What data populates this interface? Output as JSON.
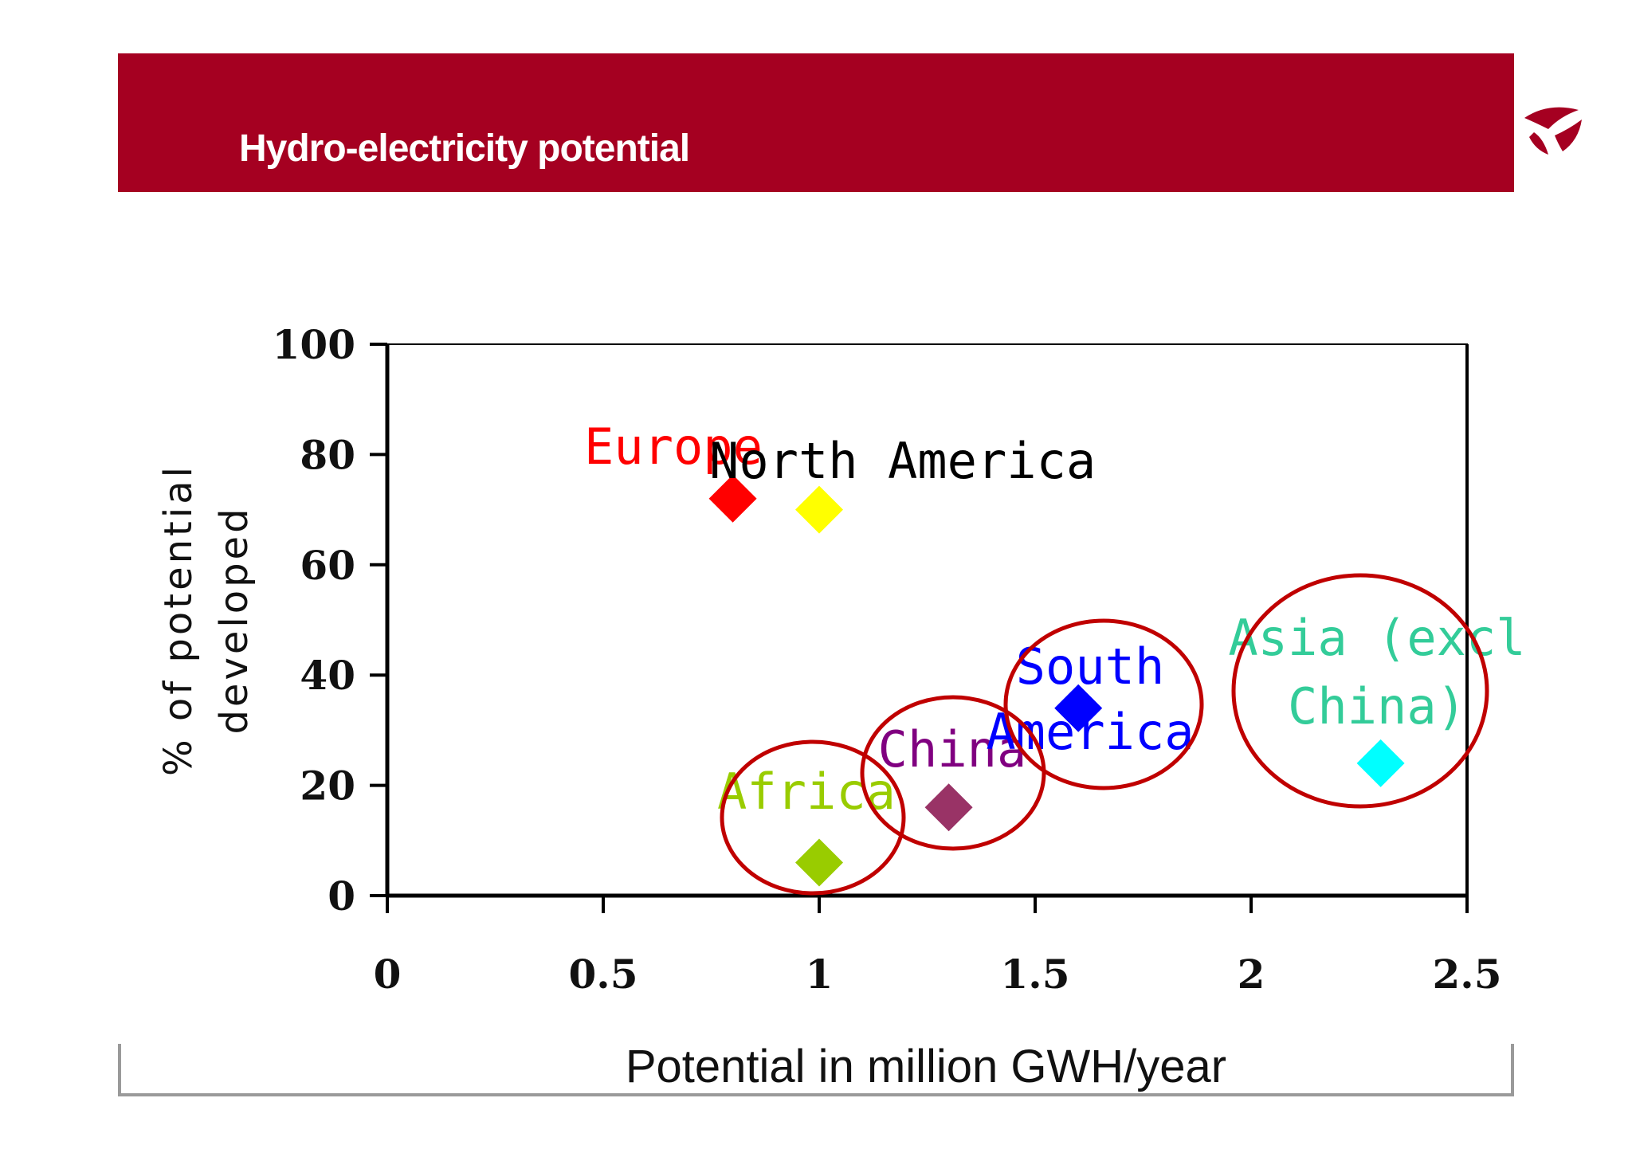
{
  "slide": {
    "title": "Hydro-electricity potential",
    "brand_color": "#a50021"
  },
  "logo": {
    "icon": "circular-swoosh-logo-icon"
  },
  "chart_data": {
    "type": "scatter",
    "title": "",
    "xlabel": "Potential in million GWH/year",
    "ylabel_lines": [
      "% of potential",
      "developed"
    ],
    "xlim": [
      0,
      2.5
    ],
    "ylim": [
      0,
      100
    ],
    "x_ticks": [
      0,
      0.5,
      1,
      1.5,
      2,
      2.5
    ],
    "x_tick_labels": [
      "0",
      "0.5",
      "1",
      "1.5",
      "2",
      "2.5"
    ],
    "y_ticks": [
      0,
      20,
      40,
      60,
      80,
      100
    ],
    "y_tick_labels": [
      "0",
      "20",
      "40",
      "60",
      "80",
      "100"
    ],
    "grid": false,
    "points": [
      {
        "name": "europe",
        "label_lines": [
          "Europe"
        ],
        "x": 0.8,
        "y": 72,
        "color": "#ff0000"
      },
      {
        "name": "north-america",
        "label_lines": [
          "North America"
        ],
        "x": 1.0,
        "y": 70,
        "color": "#ffff00",
        "label_color": "#000000"
      },
      {
        "name": "africa",
        "label_lines": [
          "Africa"
        ],
        "x": 1.0,
        "y": 6,
        "color": "#99cc00",
        "circled": true
      },
      {
        "name": "china",
        "label_lines": [
          "China"
        ],
        "x": 1.3,
        "y": 16,
        "color": "#993366",
        "label_color": "#800080",
        "circled": true
      },
      {
        "name": "south-america",
        "label_lines": [
          "South",
          "America"
        ],
        "x": 1.6,
        "y": 34,
        "color": "#0000ff",
        "circled": true
      },
      {
        "name": "asia-excl-china",
        "label_lines": [
          "Asia (excl",
          "China)"
        ],
        "x": 2.3,
        "y": 24,
        "color": "#00ffff",
        "label_color": "#33cc99",
        "circled": true
      }
    ],
    "highlight_color": "#c00000"
  }
}
